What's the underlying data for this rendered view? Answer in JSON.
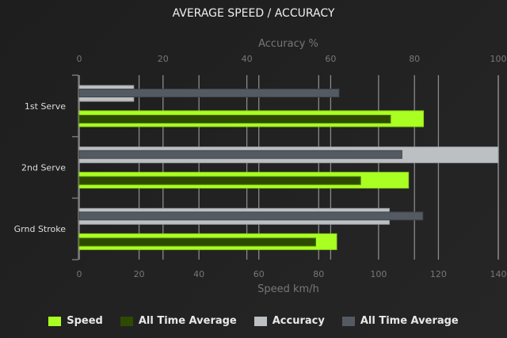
{
  "chart_data": {
    "type": "bar",
    "orientation": "horizontal",
    "title": "AVERAGE SPEED / ACCURACY",
    "categories": [
      "1st Serve",
      "2nd Serve",
      "Grnd Stroke"
    ],
    "x_bottom": {
      "label": "Speed km/h",
      "range": [
        0,
        140
      ],
      "ticks": [
        0,
        20,
        40,
        60,
        80,
        100,
        120,
        140
      ]
    },
    "x_top": {
      "label": "Accuracy %",
      "range": [
        0,
        100
      ],
      "ticks": [
        0,
        20,
        40,
        60,
        80,
        100
      ]
    },
    "grid": true,
    "legend_position": "bottom",
    "series": [
      {
        "name": "Speed",
        "axis": "bottom",
        "color": "#aaff22",
        "values": [
          115,
          110,
          86
        ]
      },
      {
        "name": "All Time Average",
        "axis": "bottom",
        "color": "#2e4a00",
        "values": [
          104,
          94,
          79
        ]
      },
      {
        "name": "Accuracy",
        "axis": "top",
        "color": "#bcc0c3",
        "values": [
          13,
          100,
          74
        ]
      },
      {
        "name": "All Time Average",
        "axis": "top",
        "color": "#545a61",
        "values": [
          62,
          77,
          82
        ]
      }
    ]
  }
}
